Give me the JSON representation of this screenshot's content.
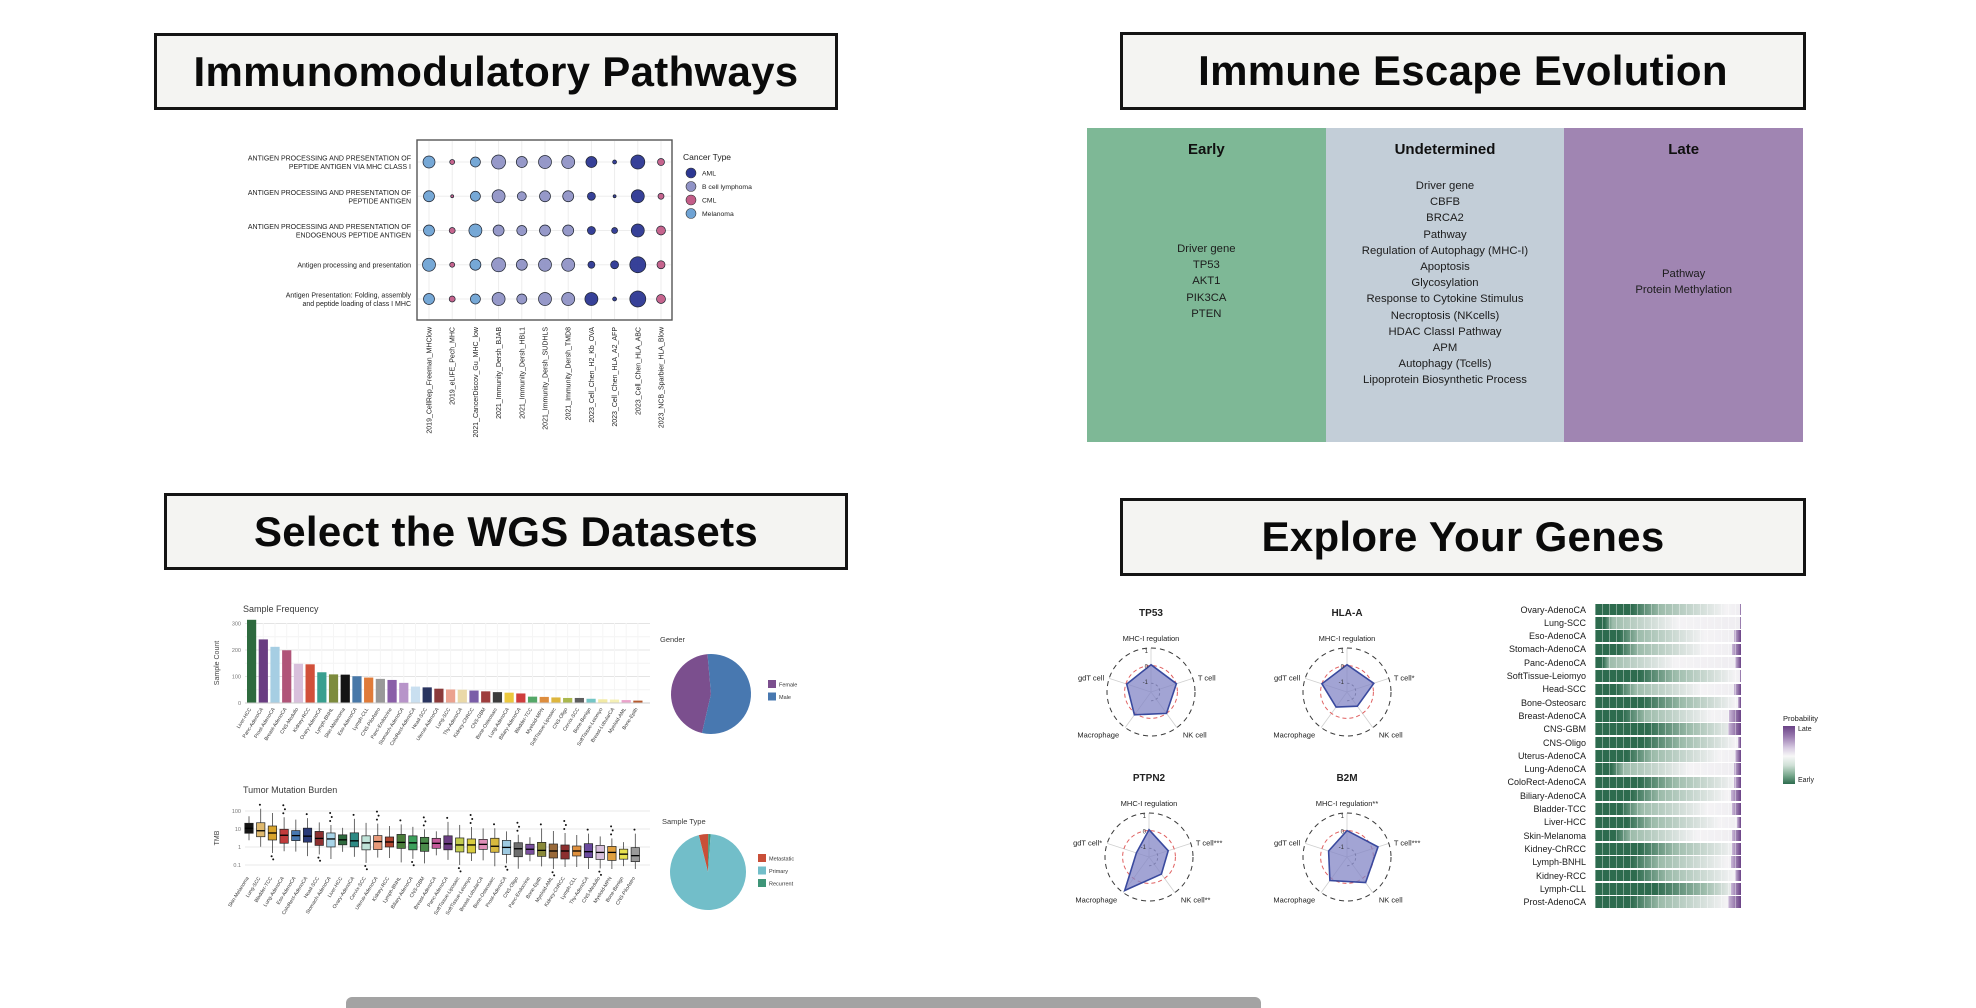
{
  "panels": {
    "immuno": {
      "title": "Immunomodulatory Pathways"
    },
    "evolution": {
      "title": "Immune Escape Evolution",
      "columns": [
        {
          "header": "Early",
          "color": "#7eb896",
          "body_top": 113,
          "lines": [
            "Driver gene",
            "TP53",
            "AKT1",
            "PIK3CA",
            "PTEN"
          ]
        },
        {
          "header": "Undetermined",
          "color": "#c3ced8",
          "body_top": 50,
          "lines": [
            "Driver gene",
            "CBFB",
            "BRCA2",
            "Pathway",
            "Regulation of Autophagy (MHC-I)",
            "Apoptosis",
            "Glycosylation",
            "Response to Cytokine Stimulus",
            "Necroptosis (NKcells)",
            "HDAC ClassI Pathway",
            "APM",
            "Autophagy (Tcells)",
            "Lipoprotein Biosynthetic Process"
          ]
        },
        {
          "header": "Late",
          "color": "#a085b2",
          "body_top": 138,
          "lines": [
            "Pathway",
            "Protein Methylation"
          ]
        }
      ]
    },
    "wgs": {
      "title": "Select the WGS Datasets"
    },
    "genes": {
      "title": "Explore Your Genes"
    }
  },
  "chart_data": [
    {
      "id": "pathway_dotplot",
      "type": "bubble",
      "rows": [
        "ANTIGEN PROCESSING AND PRESENTATION OF|PEPTIDE ANTIGEN VIA MHC CLASS I",
        "ANTIGEN PROCESSING AND PRESENTATION OF|PEPTIDE ANTIGEN",
        "ANTIGEN PROCESSING AND PRESENTATION OF|ENDOGENOUS PEPTIDE ANTIGEN",
        "Antigen processing and presentation",
        "Antigen Presentation: Folding, assembly|and peptide loading of class I MHC"
      ],
      "columns": [
        "2019_CellRep_Freeman_MHClow",
        "2019_eLIFE_Pech_MHC",
        "2021_CancerDiscov_Gu_MHC_low",
        "2021_Immunity_Dersh_BJAB",
        "2021_Immunity_Dersh_HBL1",
        "2021_Immunity_Dersh_SUDHLS",
        "2021_Immunity_Dersh_TMD8",
        "2023_Cell_Chen_H2_Kb_OVA",
        "2023_Cell_Chen_HLA_A2_AFP",
        "2023_Cell_Chen_HLA_ABC",
        "2023_NCB_Sparbier_HLA_Blow"
      ],
      "column_cancer_type": [
        "Melanoma",
        "CML",
        "Melanoma",
        "B cell lymphoma",
        "B cell lymphoma",
        "B cell lymphoma",
        "B cell lymphoma",
        "AML",
        "AML",
        "AML",
        "CML"
      ],
      "sizes": [
        [
          6,
          2.5,
          5,
          7,
          5.5,
          6.5,
          6.5,
          5.5,
          2,
          7,
          3.5
        ],
        [
          5.5,
          1.5,
          5,
          6.5,
          4.5,
          5.5,
          5.5,
          4,
          1.5,
          6.5,
          3
        ],
        [
          5.5,
          3,
          6.5,
          5.5,
          5,
          5.5,
          5.5,
          4,
          3,
          6.5,
          4.5
        ],
        [
          6.5,
          2.5,
          5.5,
          7,
          5.5,
          6.5,
          6.5,
          3.5,
          4,
          8,
          4
        ],
        [
          5.5,
          3,
          5,
          6.5,
          5,
          6.5,
          6.5,
          6.5,
          2,
          8,
          4.5
        ]
      ],
      "legend": {
        "title": "Cancer Type",
        "entries": [
          {
            "label": "AML",
            "color": "#2c3792"
          },
          {
            "label": "B cell lymphoma",
            "color": "#9093c6"
          },
          {
            "label": "CML",
            "color": "#c35d88"
          },
          {
            "label": "Melanoma",
            "color": "#6fa3d4"
          }
        ]
      }
    },
    {
      "id": "sample_frequency",
      "type": "bar",
      "title": "Sample Frequency",
      "ylabel": "Sample Count",
      "yticks": [
        0,
        100,
        200,
        300
      ],
      "ylim": [
        0,
        330
      ],
      "categories": [
        "Liver-HCC",
        "Panc-AdenoCA",
        "Prost-AdenoCA",
        "Breast-AdenoCA",
        "CNS-Medullo",
        "Kidney-RCC",
        "Ovary-AdenoCA",
        "Lymph-BNHL",
        "Skin-Melanoma",
        "Eso-AdenoCA",
        "Lymph-CLL",
        "CNS-PiloAstro",
        "Panc-Endocrine",
        "Stomach-AdenoCA",
        "ColoRect-AdenoCA",
        "Head-SCC",
        "Uterus-AdenoCA",
        "Lung-SCC",
        "Thy-AdenoCA",
        "Kidney-ChRCC",
        "CNS-GBM",
        "Bone-Osteosarc",
        "Lung-AdenoCA",
        "Biliary-AdenoCA",
        "Bladder-TCC",
        "Myeloid-MPN",
        "SoftTissue-Liposarc",
        "CNS-Oligo",
        "Cervix-SCC",
        "Bone-Benign",
        "SoftTissue-Leiomyo",
        "Breast-LobularCA",
        "Myeloid-AML",
        "Bone-Epith"
      ],
      "values": [
        314,
        240,
        212,
        199,
        148,
        146,
        116,
        108,
        107,
        101,
        96,
        91,
        87,
        76,
        62,
        59,
        54,
        51,
        50,
        47,
        44,
        41,
        39,
        36,
        24,
        23,
        21,
        19,
        19,
        16,
        14,
        13,
        11,
        9
      ],
      "colors": [
        "#2e6a3e",
        "#6a3d82",
        "#a6cee3",
        "#b05478",
        "#d8c0dc",
        "#d1503a",
        "#399f8f",
        "#7d8b3d",
        "#141414",
        "#4878a8",
        "#e07b39",
        "#999999",
        "#8a5fa8",
        "#b794c9",
        "#c9dff0",
        "#2a3560",
        "#8b3a3a",
        "#eba28f",
        "#ead9a8",
        "#7a5da8",
        "#9e3d3d",
        "#3c3c3c",
        "#ecc83e",
        "#cf3d3d",
        "#55a868",
        "#dd8d3e",
        "#deb63e",
        "#aab84e",
        "#5e5e5e",
        "#74c6c6",
        "#f2eaa5",
        "#f5f0b5",
        "#eba3cb",
        "#b65a2e"
      ]
    },
    {
      "id": "gender_pie",
      "type": "pie",
      "title": "Gender",
      "start_angle": 193,
      "slices": [
        {
          "label": "Female",
          "value": 45,
          "color": "#7b4f8e"
        },
        {
          "label": "Male",
          "value": 55,
          "color": "#4878b0"
        }
      ],
      "legend": [
        "Female",
        "Male"
      ]
    },
    {
      "id": "tmb_boxplot",
      "type": "box",
      "title": "Tumor Mutation Burden",
      "ylabel": "TMB",
      "yticks": [
        100,
        10,
        1,
        0.1
      ],
      "log_scale": true,
      "categories": [
        "Skin-Melanoma",
        "Lung-SCC",
        "Bladder-TCC",
        "Lung-AdenoCA",
        "Eso-AdenoCA",
        "ColoRect-AdenoCA",
        "Head-SCC",
        "Stomach-AdenoCA",
        "Liver-HCC",
        "Ovary-AdenoCA",
        "Cervix-SCC",
        "Uterus-AdenoCA",
        "Kidney-RCC",
        "Lymph-BNHL",
        "Biliary-AdenoCA",
        "CNS-GBM",
        "Breast-AdenoCA",
        "Panc-AdenoCA",
        "SoftTissue-Liposarc",
        "SoftTissue-Leiomyo",
        "Breast-LobularCA",
        "Bone-Osteosarc",
        "Prost-AdenoCA",
        "CNS-Oligo",
        "Panc-Endocrine",
        "Bone-Epith",
        "Myeloid-AML",
        "Kidney-ChRCC",
        "Lymph-CLL",
        "Thy-AdenoCA",
        "CNS-Medullo",
        "Myeloid-MPN",
        "Bone-Benign",
        "CNS-PiloAstro"
      ],
      "medians": [
        11,
        8,
        6,
        4.5,
        4.3,
        4,
        3,
        2.8,
        2.5,
        2.2,
        1.7,
        2,
        1.9,
        1.8,
        1.7,
        1.6,
        1.6,
        1.5,
        1.3,
        1.3,
        1.4,
        1.1,
        0.95,
        0.8,
        0.75,
        0.65,
        0.6,
        0.6,
        0.6,
        0.55,
        0.5,
        0.5,
        0.4,
        0.33
      ],
      "colors": [
        "#141414",
        "#dfb96e",
        "#d8a42c",
        "#c23b3b",
        "#4878b0",
        "#2a3a78",
        "#8c2f2f",
        "#a8d4e8",
        "#2e6a3e",
        "#2e8b85",
        "#bfe3d8",
        "#e89a7a",
        "#b0452f",
        "#4a7d3a",
        "#3da05c",
        "#4a8a4a",
        "#c45a9a",
        "#6a3d82",
        "#c3cc4e",
        "#d9cc3e",
        "#e08fb8",
        "#d8b93e",
        "#9ecae1",
        "#6e6e6e",
        "#7a4f9e",
        "#8a8a3a",
        "#9a6a3a",
        "#8c2f2f",
        "#e0913e",
        "#6a4a9e",
        "#d8c0dc",
        "#e0a03e",
        "#e8e04e",
        "#9a9a9a"
      ]
    },
    {
      "id": "sample_type_pie",
      "type": "pie",
      "title": "Sample Type",
      "start_angle": -14,
      "slices": [
        {
          "label": "Metastatic",
          "value": 4,
          "color": "#c94f38"
        },
        {
          "label": "Recurrent",
          "value": 1,
          "color": "#3e9578"
        },
        {
          "label": "Primary",
          "value": 95,
          "color": "#72bec9"
        }
      ],
      "legend": [
        "Metastatic",
        "Primary",
        "Recurrent"
      ]
    },
    {
      "id": "radar_charts",
      "type": "radar",
      "axes_ticks": [
        "1",
        "0",
        "-1"
      ],
      "polygon_color": "#8386c5",
      "polygon_stroke": "#39499e",
      "zero_ring_color": "#e06060",
      "charts": [
        {
          "title": "TP53",
          "axes": [
            "MHC-I regulation",
            "T cell",
            "NK cell",
            "Macrophage",
            "gdT cell"
          ],
          "values": [
            0.05,
            0.02,
            0,
            0.1,
            -0.05
          ]
        },
        {
          "title": "HLA-A",
          "axes": [
            "MHC-I regulation",
            "T cell*",
            "NK cell",
            "Macrophage",
            "gdT cell"
          ],
          "values": [
            0.05,
            0.1,
            -0.5,
            -0.45,
            0
          ]
        },
        {
          "title": "PTPN2",
          "axes": [
            "MHC-I regulation",
            "T cell***",
            "NK cell**",
            "Macrophage",
            "gdT cell*"
          ],
          "values": [
            0.05,
            -0.35,
            -0.3,
            0.85,
            -0.75
          ]
        },
        {
          "title": "B2M",
          "axes": [
            "MHC-I regulation**",
            "T cell***",
            "NK cell",
            "Macrophage",
            "gdT cell"
          ],
          "values": [
            0,
            0.35,
            0.3,
            0.15,
            -0.4
          ]
        }
      ]
    },
    {
      "id": "escape_probability",
      "type": "stacked-gradient-bar",
      "legend": {
        "title": "Probability",
        "top_label": "Late",
        "bottom_label": "Early",
        "late_color": "#6a4286",
        "early_color": "#2d6b4e"
      },
      "rows": [
        {
          "label": "Ovary-AdenoCA",
          "green": 0.45,
          "purple": 0.01
        },
        {
          "label": "Lung-SCC",
          "green": 0.12,
          "purple": 0.01
        },
        {
          "label": "Eso-AdenoCA",
          "green": 0.3,
          "purple": 0.05
        },
        {
          "label": "Stomach-AdenoCA",
          "green": 0.3,
          "purple": 0.06
        },
        {
          "label": "Panc-AdenoCA",
          "green": 0.1,
          "purple": 0.04
        },
        {
          "label": "SoftTissue-Leiomyo",
          "green": 0.55,
          "purple": 0.01
        },
        {
          "label": "Head-SCC",
          "green": 0.28,
          "purple": 0.05
        },
        {
          "label": "Bone-Osteosarc",
          "green": 0.6,
          "purple": 0.02
        },
        {
          "label": "Breast-AdenoCA",
          "green": 0.35,
          "purple": 0.08
        },
        {
          "label": "CNS-GBM",
          "green": 0.65,
          "purple": 0.09
        },
        {
          "label": "CNS-Oligo",
          "green": 0.6,
          "purple": 0.02
        },
        {
          "label": "Uterus-AdenoCA",
          "green": 0.4,
          "purple": 0.04
        },
        {
          "label": "Lung-AdenoCA",
          "green": 0.2,
          "purple": 0.05
        },
        {
          "label": "ColoRect-AdenoCA",
          "green": 0.55,
          "purple": 0.05
        },
        {
          "label": "Biliary-AdenoCA",
          "green": 0.45,
          "purple": 0.07
        },
        {
          "label": "Bladder-TCC",
          "green": 0.32,
          "purple": 0.06
        },
        {
          "label": "Liver-HCC",
          "green": 0.4,
          "purple": 0.03
        },
        {
          "label": "Skin-Melanoma",
          "green": 0.25,
          "purple": 0.06
        },
        {
          "label": "Kidney-ChRCC",
          "green": 0.55,
          "purple": 0.06
        },
        {
          "label": "Lymph-BNHL",
          "green": 0.45,
          "purple": 0.07
        },
        {
          "label": "Kidney-RCC",
          "green": 0.5,
          "purple": 0.04
        },
        {
          "label": "Lymph-CLL",
          "green": 0.75,
          "purple": 0.07
        },
        {
          "label": "Prost-AdenoCA",
          "green": 0.45,
          "purple": 0.09
        }
      ]
    }
  ]
}
